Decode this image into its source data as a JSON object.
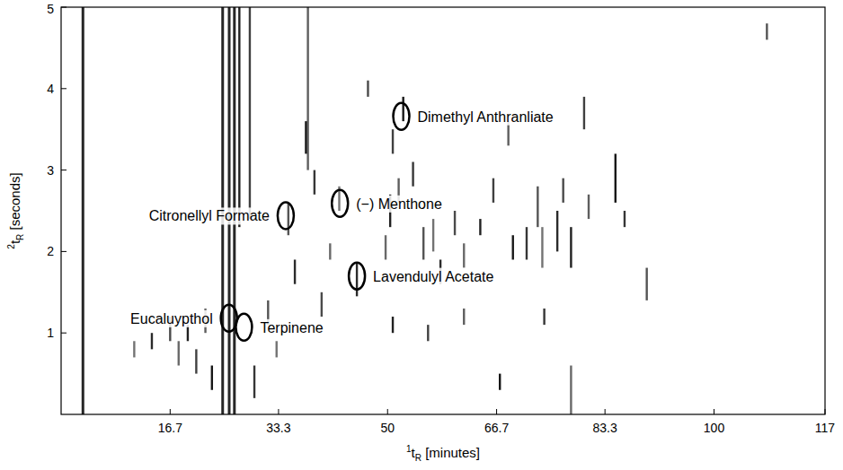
{
  "chart_data": {
    "type": "scatter",
    "x_label": {
      "sup": "1",
      "base": "t",
      "sub": "R",
      "unit": " [minutes]"
    },
    "y_label": {
      "sup": "2",
      "base": "t",
      "sub": "R",
      "unit": " [seconds]"
    },
    "xlim": [
      0,
      117
    ],
    "ylim": [
      0,
      5
    ],
    "xticks": [
      16.7,
      33.3,
      50,
      66.7,
      83.3,
      100,
      117
    ],
    "yticks": [
      1,
      2,
      3,
      4,
      5
    ],
    "grid": false,
    "series": [
      {
        "color": "#000000",
        "line_style": "vertical-streak",
        "x": [
          3.3,
          24.7,
          25.7,
          26.5,
          27.3,
          28.9,
          37.8,
          37.5,
          38.8,
          34.8,
          42.6,
          45.3,
          47.0,
          49.7,
          50.4,
          50.8,
          51.7,
          52.4,
          53.9,
          55.5,
          57.0,
          58.1,
          60.3,
          61.7,
          64.2,
          66.2,
          68.5,
          69.2,
          71.3,
          73.0,
          73.7,
          76.0,
          76.9,
          78.1,
          78.1,
          80.1,
          80.8,
          84.9,
          86.3,
          89.7,
          11.2,
          13.9,
          16.7,
          18.0,
          19.4,
          20.7,
          22.1,
          23.1,
          29.6,
          31.7,
          33.0,
          35.8,
          39.9,
          41.2,
          50.8,
          56.2,
          61.7,
          67.2,
          74.0,
          108.1
        ],
        "low": [
          0,
          0,
          0,
          0,
          2.3,
          2.4,
          3.0,
          3.2,
          2.7,
          2.2,
          2.5,
          1.45,
          3.9,
          1.9,
          2.3,
          3.2,
          2.6,
          3.6,
          2.8,
          1.9,
          2.0,
          1.6,
          2.2,
          1.8,
          2.2,
          2.6,
          3.3,
          1.9,
          1.9,
          2.3,
          1.8,
          2.0,
          2.6,
          0,
          1.8,
          3.5,
          2.4,
          2.6,
          2.3,
          1.4,
          0.7,
          0.8,
          0.9,
          0.6,
          0.9,
          0.5,
          1.0,
          0.3,
          0.2,
          1.1,
          0.7,
          1.6,
          1.2,
          1.9,
          1.0,
          0.9,
          1.1,
          0.3,
          1.1,
          4.6
        ],
        "values": [
          5,
          5,
          5,
          5,
          5,
          5,
          5,
          3.6,
          3.0,
          2.6,
          2.8,
          1.85,
          4.1,
          2.2,
          2.7,
          3.5,
          2.9,
          3.9,
          3.1,
          2.3,
          2.4,
          1.9,
          2.5,
          2.1,
          2.4,
          2.9,
          3.6,
          2.2,
          2.3,
          2.8,
          2.3,
          2.5,
          2.9,
          0.6,
          2.3,
          3.9,
          2.7,
          3.2,
          2.5,
          1.8,
          0.9,
          1.0,
          1.2,
          0.9,
          1.1,
          0.8,
          1.3,
          0.6,
          0.6,
          1.4,
          0.9,
          1.9,
          1.5,
          2.1,
          1.2,
          1.1,
          1.3,
          0.5,
          1.3,
          4.8
        ]
      }
    ],
    "annotations": [
      {
        "text": "Eucaluypthol",
        "x": 25.7,
        "y": 1.18
      },
      {
        "text": "Terpinene",
        "x": 28.0,
        "y": 1.07
      },
      {
        "text": "Citronellyl Formate",
        "x": 34.4,
        "y": 2.44
      },
      {
        "text": "(−) Menthone",
        "x": 42.7,
        "y": 2.59
      },
      {
        "text": "Lavendulyl Acetate",
        "x": 45.3,
        "y": 1.7
      },
      {
        "text": "Dimethyl Anthranliate",
        "x": 52.1,
        "y": 3.66
      }
    ]
  }
}
